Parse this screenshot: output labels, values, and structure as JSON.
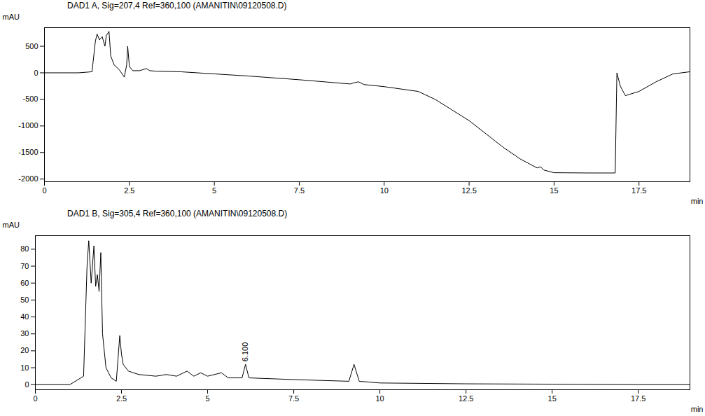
{
  "chart_data": [
    {
      "type": "line",
      "title": "DAD1 A, Sig=207,4 Ref=360,100 (AMANITIN\\09120508.D)",
      "xlabel": "min",
      "ylabel": "mAU",
      "xlim": [
        0,
        19
      ],
      "xticks": [
        0,
        2.5,
        5,
        7.5,
        10,
        12.5,
        15,
        17.5
      ],
      "ylim": [
        -2050,
        850
      ],
      "yticks": [
        -2000,
        -1500,
        -1000,
        -500,
        0,
        500
      ],
      "grid": false,
      "color": "#000000",
      "x": [
        0,
        1.0,
        1.4,
        1.5,
        1.55,
        1.62,
        1.7,
        1.78,
        1.82,
        1.9,
        1.95,
        2.05,
        2.2,
        2.35,
        2.42,
        2.45,
        2.5,
        2.6,
        2.8,
        3.0,
        3.1,
        3.3,
        4.0,
        5.0,
        6.0,
        7.5,
        9.0,
        9.15,
        9.25,
        9.4,
        10.0,
        11.0,
        11.5,
        12.0,
        12.5,
        13.0,
        13.5,
        14.0,
        14.5,
        14.6,
        14.7,
        15.0,
        16.0,
        16.8,
        16.85,
        16.95,
        17.1,
        17.5,
        18.0,
        18.5,
        19.0
      ],
      "values": [
        0,
        0,
        20,
        600,
        730,
        620,
        680,
        500,
        700,
        780,
        320,
        150,
        60,
        -80,
        150,
        500,
        120,
        40,
        40,
        80,
        40,
        30,
        20,
        -20,
        -60,
        -130,
        -210,
        -180,
        -170,
        -220,
        -260,
        -350,
        -500,
        -700,
        -900,
        -1150,
        -1400,
        -1620,
        -1790,
        -1770,
        -1830,
        -1880,
        -1885,
        -1885,
        0,
        -250,
        -430,
        -350,
        -170,
        -20,
        20
      ]
    },
    {
      "type": "line",
      "title": "DAD1 B, Sig=305,4 Ref=360,100 (AMANITIN\\09120508.D)",
      "xlabel": "min",
      "ylabel": "mAU",
      "xlim": [
        0,
        19
      ],
      "xticks": [
        0,
        2.5,
        5,
        7.5,
        10,
        12.5,
        15,
        17.5
      ],
      "ylim": [
        -3,
        88
      ],
      "yticks": [
        0,
        10,
        20,
        30,
        40,
        50,
        60,
        70,
        80
      ],
      "grid": false,
      "color": "#000000",
      "x": [
        0,
        1.0,
        1.4,
        1.5,
        1.55,
        1.62,
        1.7,
        1.75,
        1.8,
        1.85,
        1.9,
        1.95,
        2.05,
        2.2,
        2.35,
        2.45,
        2.5,
        2.55,
        2.7,
        3.0,
        3.5,
        3.8,
        4.1,
        4.4,
        4.6,
        4.8,
        5.0,
        5.4,
        5.6,
        6.0,
        6.1,
        6.2,
        7.5,
        9.1,
        9.25,
        9.4,
        10.0,
        12.5,
        15.0,
        17.5,
        19.0
      ],
      "values": [
        0,
        0,
        5,
        70,
        85,
        60,
        82,
        58,
        65,
        55,
        78,
        30,
        10,
        4,
        2,
        29,
        18,
        12,
        8,
        6,
        5,
        6,
        5,
        8,
        5,
        7,
        5,
        7,
        4,
        4,
        12,
        4,
        3,
        2,
        12,
        2,
        1,
        0.5,
        0.3,
        0,
        0
      ],
      "annotations": [
        {
          "text": "6.100",
          "x": 6.1,
          "y": 12
        }
      ]
    }
  ]
}
